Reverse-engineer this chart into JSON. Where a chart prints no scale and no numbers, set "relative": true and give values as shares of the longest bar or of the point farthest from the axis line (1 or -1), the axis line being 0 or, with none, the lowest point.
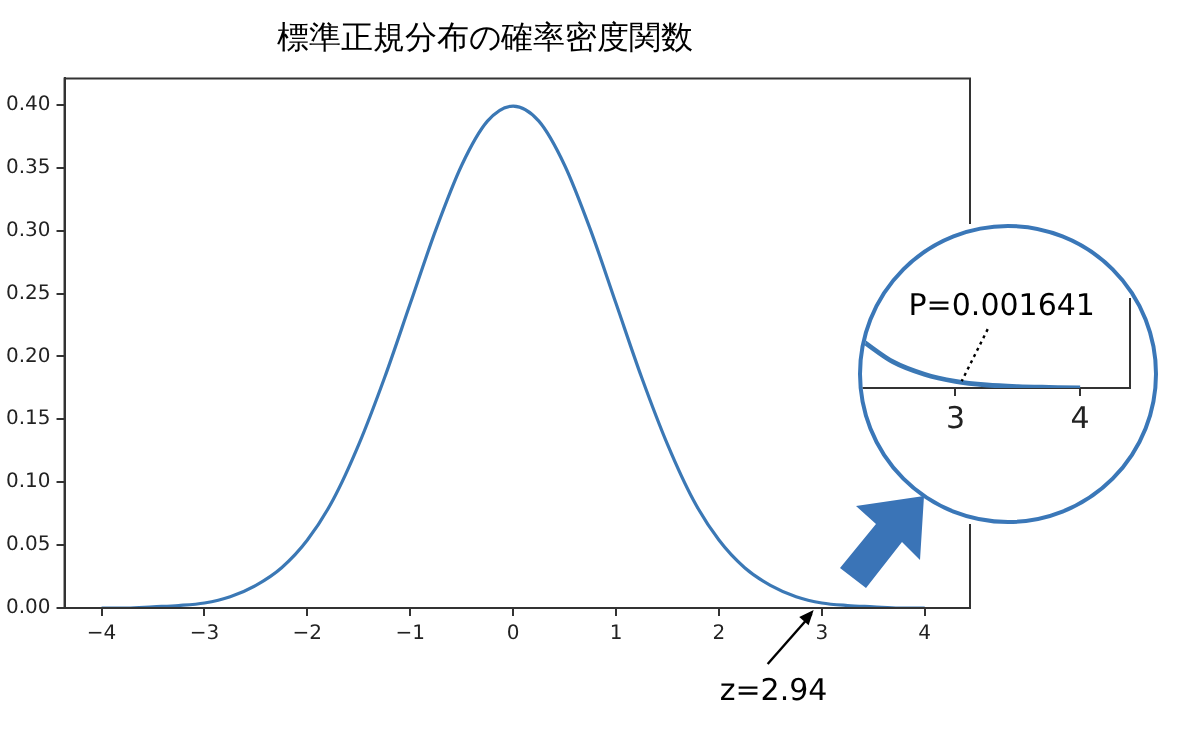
{
  "chart_data": [
    {
      "type": "line",
      "title": "標準正規分布の確率密度関数",
      "x": [
        -4,
        -3.75,
        -3.5,
        -3.25,
        -3,
        -2.75,
        -2.5,
        -2.25,
        -2,
        -1.75,
        -1.5,
        -1.25,
        -1,
        -0.75,
        -0.5,
        -0.25,
        0,
        0.25,
        0.5,
        0.75,
        1,
        1.25,
        1.5,
        1.75,
        2,
        2.25,
        2.5,
        2.75,
        3,
        3.25,
        3.5,
        3.75,
        4
      ],
      "series": [
        {
          "color": "#3b78b5",
          "values": [
            0.0,
            0.0,
            0.001,
            0.002,
            0.004,
            0.009,
            0.018,
            0.032,
            0.054,
            0.086,
            0.13,
            0.183,
            0.242,
            0.301,
            0.352,
            0.387,
            0.399,
            0.387,
            0.352,
            0.301,
            0.242,
            0.183,
            0.13,
            0.086,
            0.054,
            0.032,
            0.018,
            0.009,
            0.004,
            0.002,
            0.001,
            0.0,
            0.0
          ]
        }
      ],
      "xlim": [
        -4.36,
        4.44
      ],
      "ylim": [
        0,
        0.421
      ],
      "xticks": [
        {
          "value": -4,
          "label": "−4"
        },
        {
          "value": -3,
          "label": "−3"
        },
        {
          "value": -2,
          "label": "−2"
        },
        {
          "value": -1,
          "label": "−1"
        },
        0,
        1,
        2,
        3,
        4
      ],
      "yticks": [
        {
          "value": 0,
          "label": "0.00"
        },
        {
          "value": 0.05,
          "label": "0.05"
        },
        {
          "value": 0.1,
          "label": "0.10"
        },
        {
          "value": 0.15,
          "label": "0.15"
        },
        {
          "value": 0.2,
          "label": "0.20"
        },
        {
          "value": 0.25,
          "label": "0.25"
        },
        {
          "value": 0.3,
          "label": "0.30"
        },
        {
          "value": 0.35,
          "label": "0.35"
        },
        {
          "value": 0.4,
          "label": "0.40"
        }
      ],
      "grid": false,
      "legend": false,
      "marker": "none",
      "line_style": "solid",
      "annotations": [
        {
          "text": "z=2.94",
          "x": 2.94,
          "y": 0
        }
      ]
    },
    {
      "type": "line",
      "x": [
        2.25,
        2.5,
        2.75,
        3,
        3.25,
        3.5,
        3.75,
        4
      ],
      "series": [
        {
          "color": "#3b78b5",
          "values": [
            1,
            0.55,
            0.29,
            0.14,
            0.063,
            0.028,
            0.013,
            0.003
          ]
        }
      ],
      "xlim": [
        2.25,
        4.4
      ],
      "xticks": [
        3,
        4
      ],
      "tick_labels": "x",
      "relative": true,
      "grid": false,
      "legend": false,
      "marker": "none",
      "line_style": "solid",
      "annotations": [
        {
          "text": "P=0.001641",
          "x": 3.05,
          "y": 0.06
        }
      ]
    }
  ]
}
